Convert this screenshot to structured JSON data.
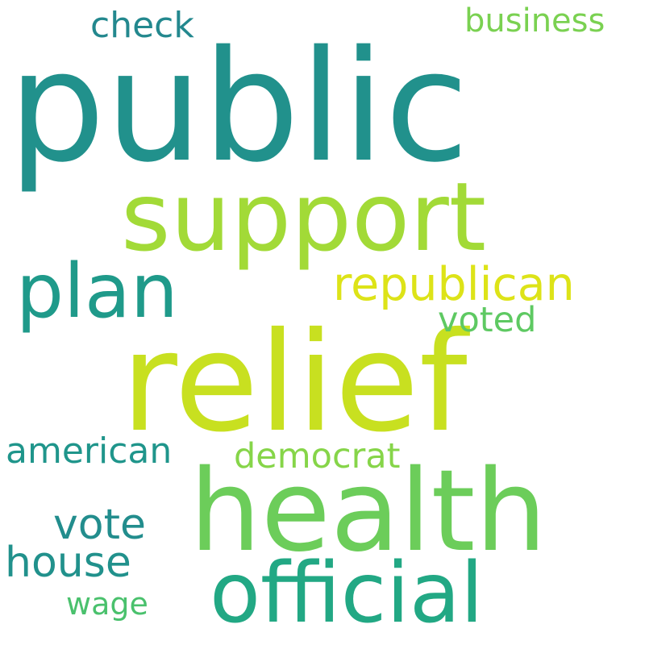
{
  "words": [
    {
      "text": "public",
      "color": "#21918c"
    },
    {
      "text": "relief",
      "color": "#c8e020"
    },
    {
      "text": "support",
      "color": "#a2da37"
    },
    {
      "text": "health",
      "color": "#6ccd5a"
    },
    {
      "text": "official",
      "color": "#22a884"
    },
    {
      "text": "plan",
      "color": "#1f9a8a"
    },
    {
      "text": "republican",
      "color": "#dde318"
    },
    {
      "text": "business",
      "color": "#7ad151"
    },
    {
      "text": "check",
      "color": "#23888e"
    },
    {
      "text": "voted",
      "color": "#5ec962"
    },
    {
      "text": "american",
      "color": "#1f958b"
    },
    {
      "text": "democrat",
      "color": "#86d549"
    },
    {
      "text": "vote",
      "color": "#228d8d"
    },
    {
      "text": "house",
      "color": "#21918c"
    },
    {
      "text": "wage",
      "color": "#4ac16d"
    }
  ]
}
